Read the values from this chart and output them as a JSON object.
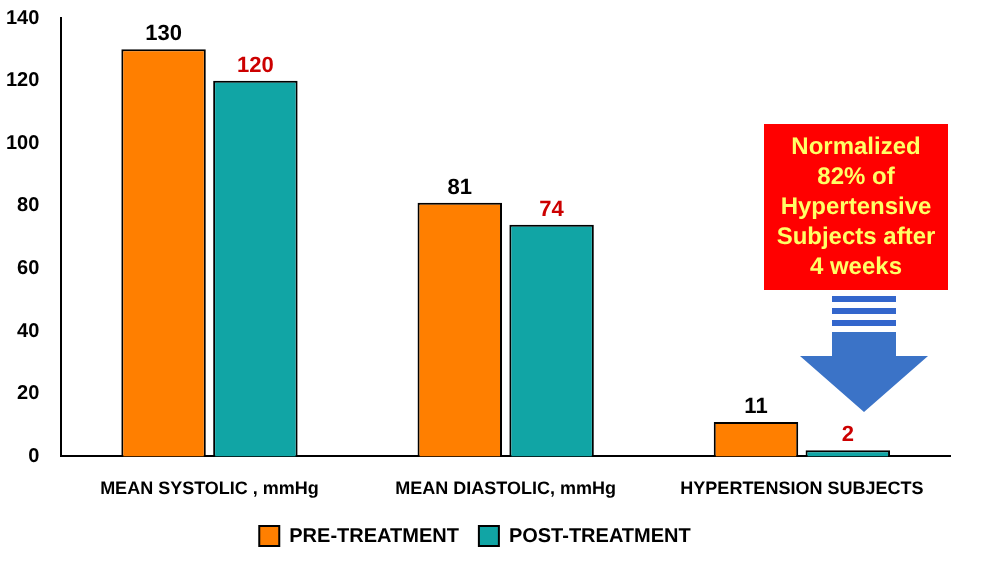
{
  "chart_data": {
    "type": "bar",
    "categories": [
      "MEAN SYSTOLIC , mmHg",
      "MEAN DIASTOLIC, mmHg",
      "HYPERTENSION SUBJECTS"
    ],
    "series": [
      {
        "name": "PRE-TREATMENT",
        "color": "#ff7f00",
        "values": [
          130,
          81,
          11
        ]
      },
      {
        "name": "POST-TREATMENT",
        "color": "#11a5a5",
        "values": [
          120,
          74,
          2
        ]
      }
    ],
    "ylim": [
      0,
      140
    ],
    "yticks": [
      0,
      20,
      40,
      60,
      80,
      100,
      120,
      140
    ],
    "grid": false,
    "legend": "bottom",
    "data_labels": true,
    "annotations": [
      "Normalized 82% of Hypertensive Subjects after 4 weeks"
    ]
  }
}
